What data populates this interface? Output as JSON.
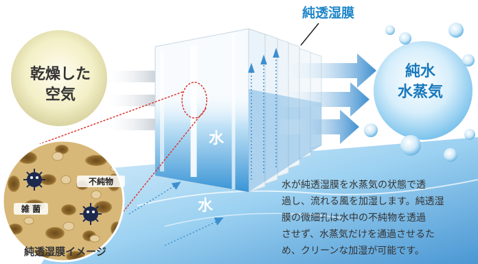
{
  "membrane_title": "純透湿膜",
  "dry_air": {
    "line1": "乾燥した",
    "line2": "空気"
  },
  "vapor": {
    "line1": "純水",
    "line2": "水蒸気"
  },
  "water_upper": "水",
  "water_lower": "水",
  "impurity_label": "不純物",
  "bacteria_label": "雑 菌",
  "image_caption": "純透湿膜イメージ",
  "description": {
    "line1": "水が純透湿膜を水蒸気の状態で透",
    "line2": "過し、流れる風を加湿します。純透湿",
    "line3": "膜の微細孔は水中の不純物を透過",
    "line4": "させず、水蒸気だけを通過させるた",
    "line5": "め、クリーンな加湿が可能です。"
  },
  "colors": {
    "accent_blue": "#1e86c9",
    "water_blue": "#4fa8e0",
    "arrow_blue": "#3d8fd0",
    "highlight_red": "#d9342b",
    "dry_air_fill": "#f3efc6"
  },
  "icons": [
    "dry-air-circle",
    "vapor-sphere",
    "membrane-sheets",
    "flow-arrows",
    "bacteria-icon",
    "magnifier-circle"
  ]
}
